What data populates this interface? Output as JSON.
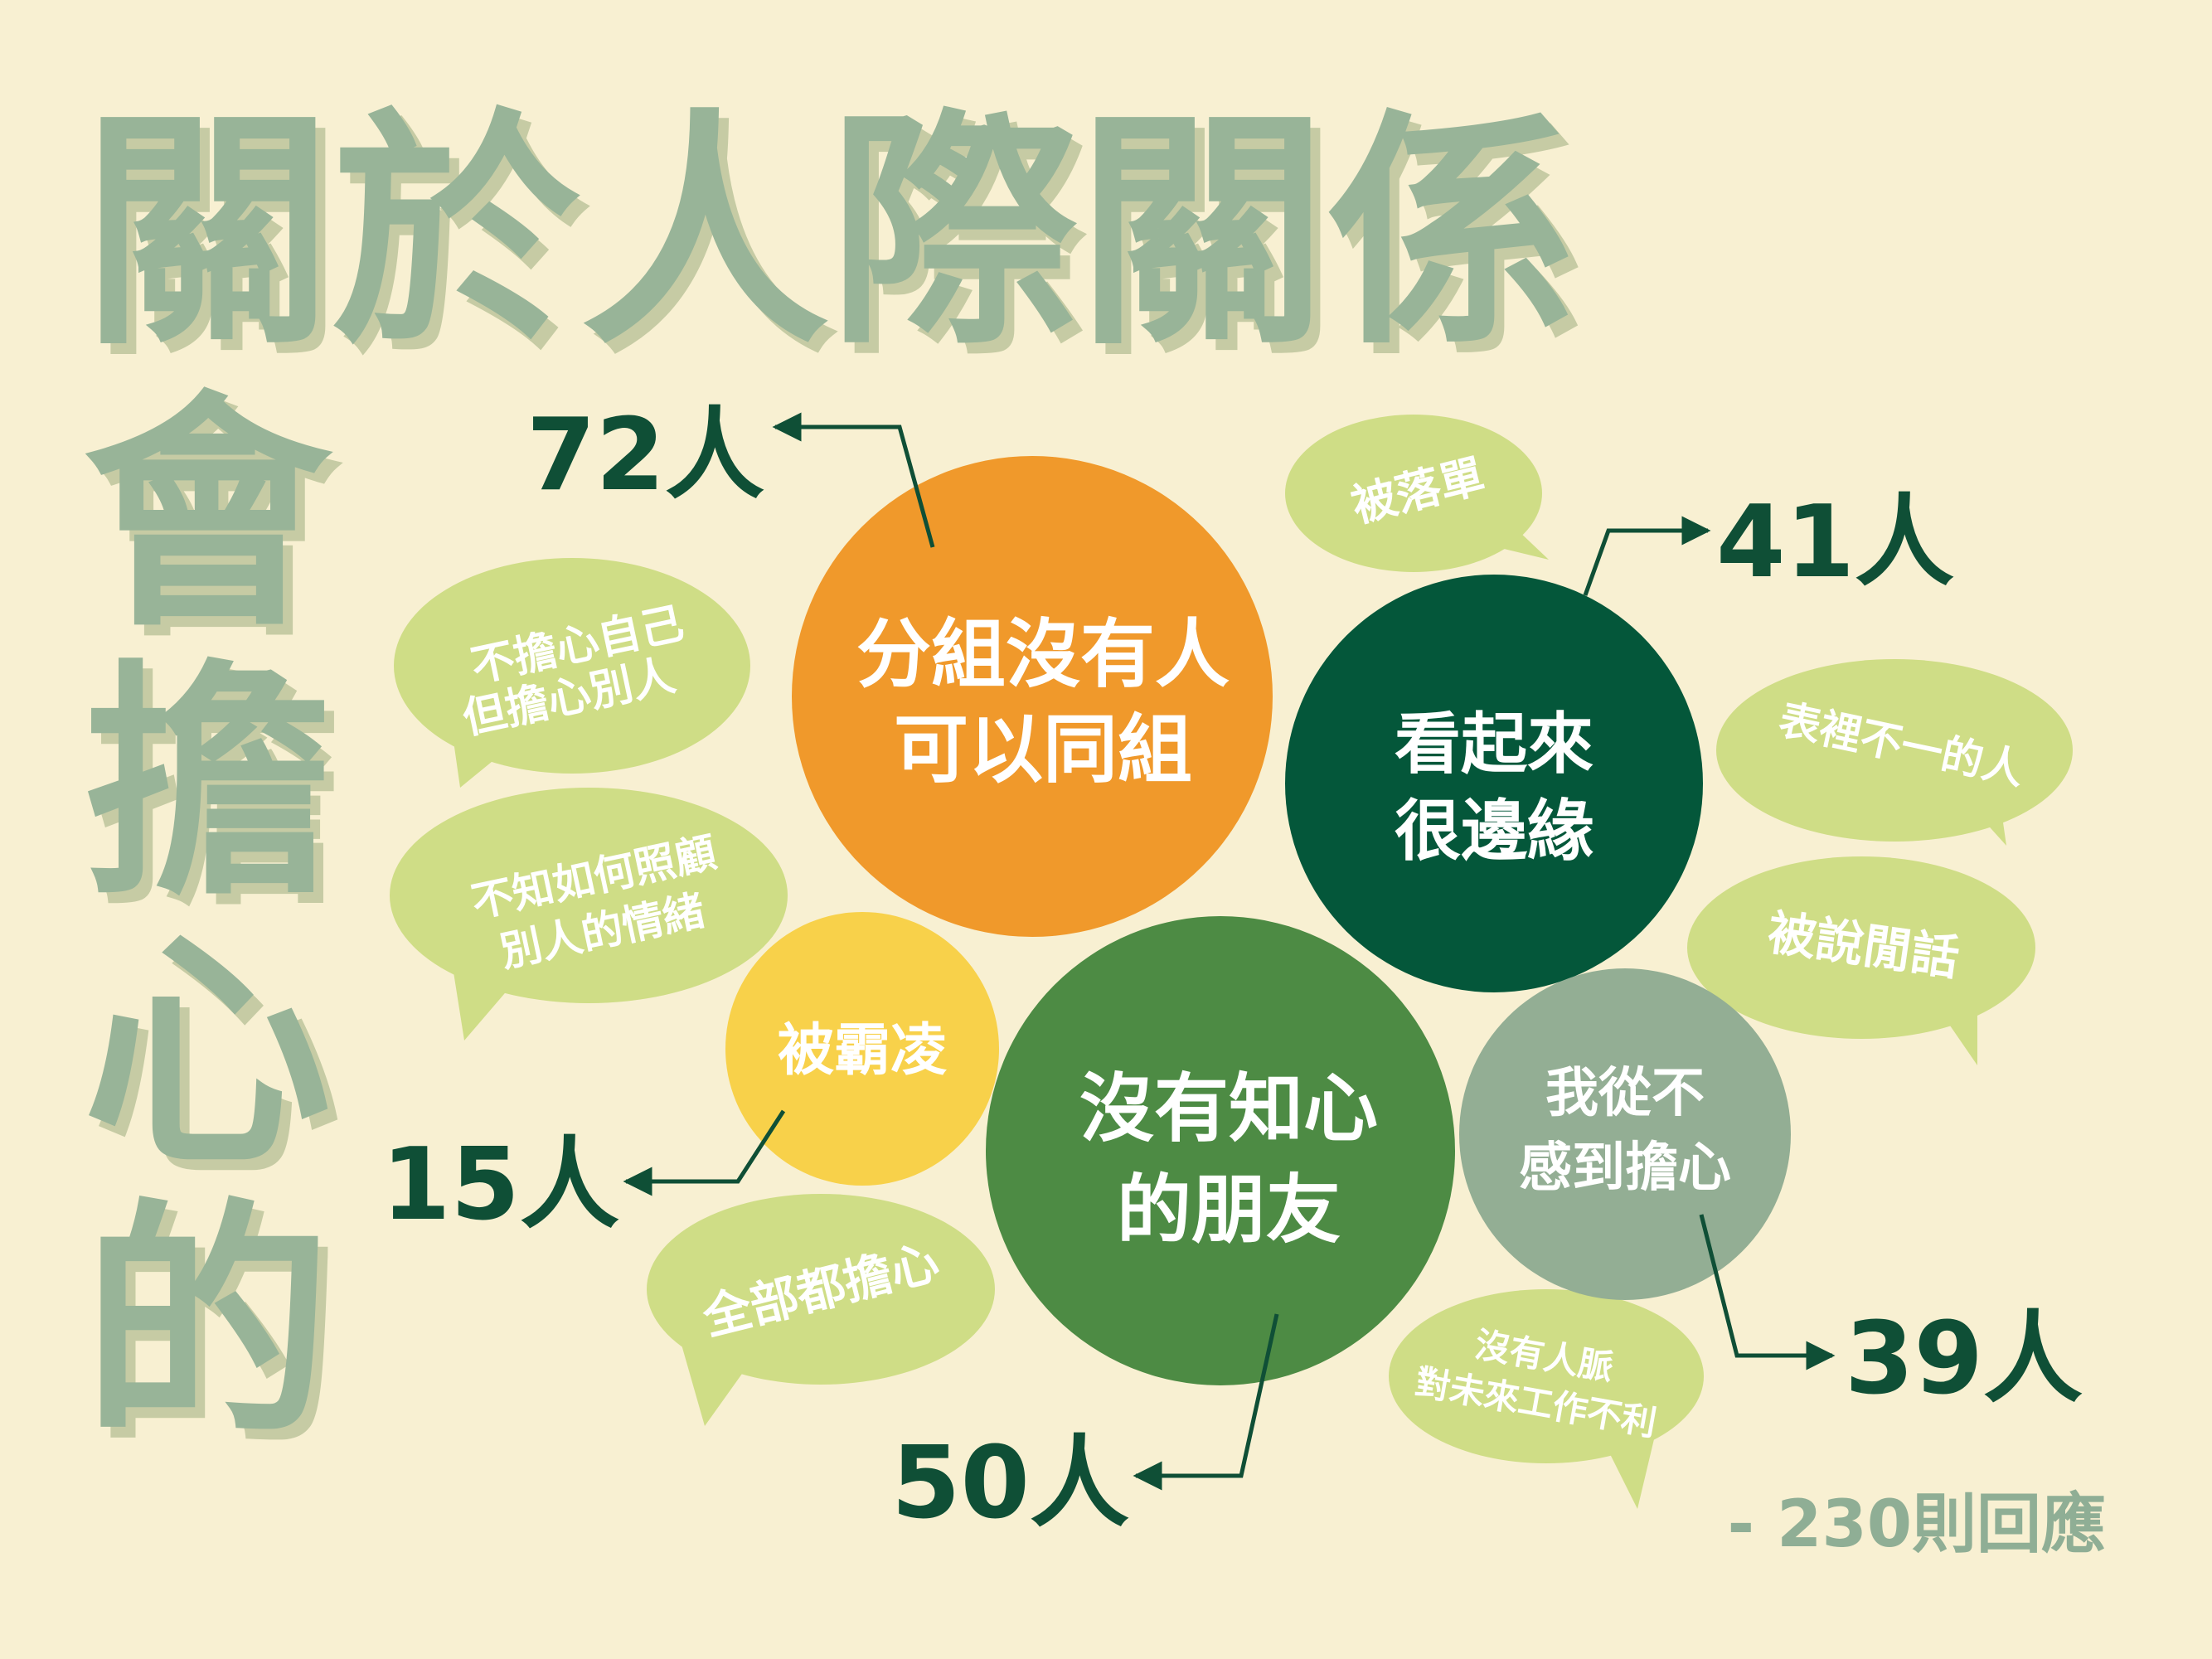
{
  "title": {
    "line1": "關於人際關係",
    "vertical": [
      "會",
      "擔",
      "心",
      "的"
    ]
  },
  "main_circles": [
    {
      "id": "no-group",
      "lines": [
        "分組沒有人",
        "可以同組"
      ],
      "count": "72人",
      "color": "#f0992b"
    },
    {
      "id": "marginal",
      "lines": [
        "看起來",
        "很邊緣"
      ],
      "count": "41人",
      "color": "#04573a"
    },
    {
      "id": "bullied",
      "lines": [
        "被霸凌"
      ],
      "count": "15人",
      "color": "#f8d14a"
    },
    {
      "id": "no-close-friend",
      "lines": [
        "沒有知心",
        "的朋友"
      ],
      "count": "50人",
      "color": "#4d8b44"
    },
    {
      "id": "never-worry",
      "lines": [
        "我從不",
        "感到擔心"
      ],
      "count": "39人",
      "color": "#93ae94"
    }
  ],
  "bubbles": [
    {
      "id": "left-out",
      "lines": [
        "被落單"
      ]
    },
    {
      "id": "not-self-but-others",
      "lines": [
        "不擔心自己",
        "但擔心別人"
      ]
    },
    {
      "id": "two-faced",
      "lines": [
        "表裡不一的人"
      ]
    },
    {
      "id": "care-emotions",
      "lines": [
        "不知如何照顧",
        "別人的情緒"
      ]
    },
    {
      "id": "gossip",
      "lines": [
        "被說閒話"
      ]
    },
    {
      "id": "worry-all",
      "lines": [
        "全部都擔心"
      ]
    },
    {
      "id": "no-connections",
      "lines": [
        "沒有人脈",
        "對未來工作不利"
      ]
    }
  ],
  "footer": {
    "responses": "- 230則回應"
  },
  "colors": {
    "background": "#f8f0d2",
    "title": "#98b498",
    "title_shadow": "#c6cba4",
    "bubble": "#cfdd86",
    "count": "#0f4f36",
    "footer": "#8fae95"
  }
}
